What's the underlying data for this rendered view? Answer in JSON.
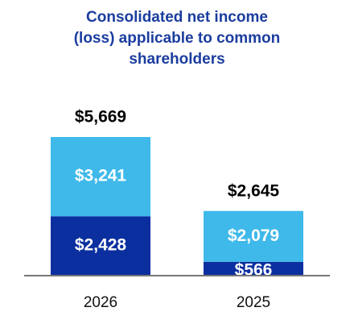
{
  "chart_data": {
    "type": "stacked-bar",
    "title": [
      "Consolidated net income",
      "(loss) applicable to common",
      "shareholders"
    ],
    "categories": [
      "2026",
      "2025"
    ],
    "series": [
      {
        "color": "#0b2f9f",
        "values": [
          2428,
          566
        ],
        "value_labels": [
          "$2,428",
          "$566"
        ]
      },
      {
        "color": "#3fb9ea",
        "values": [
          3241,
          2079
        ],
        "value_labels": [
          "$3,241",
          "$2,079"
        ]
      }
    ],
    "totals": {
      "values": [
        5669,
        2645
      ],
      "value_labels": [
        "$5,669",
        "$2,645"
      ]
    }
  }
}
